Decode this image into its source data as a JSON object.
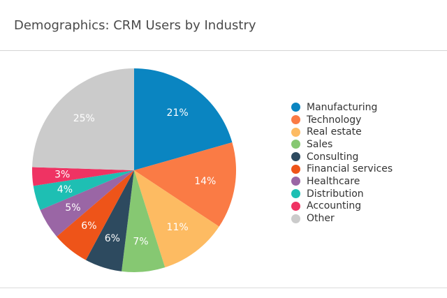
{
  "chart_data": {
    "type": "pie",
    "title": "Demographics: CRM Users by Industry",
    "categories": [
      "Manufacturing",
      "Technology",
      "Real estate",
      "Sales",
      "Consulting",
      "Financial services",
      "Healthcare",
      "Distribution",
      "Accounting",
      "Other"
    ],
    "values": [
      21,
      14,
      11,
      7,
      6,
      6,
      5,
      4,
      3,
      25
    ],
    "value_labels": [
      "21%",
      "14%",
      "11%",
      "7%",
      "6%",
      "6%",
      "5%",
      "4%",
      "3%",
      "25%"
    ],
    "colors": [
      "#0a85c1",
      "#fa7b45",
      "#fdbb62",
      "#86c872",
      "#2d4a5f",
      "#ee5419",
      "#9a66a5",
      "#1ebfb3",
      "#ef3363",
      "#cbcbcb"
    ],
    "legend_position": "right",
    "start": "12 o'clock",
    "direction": "clockwise"
  }
}
